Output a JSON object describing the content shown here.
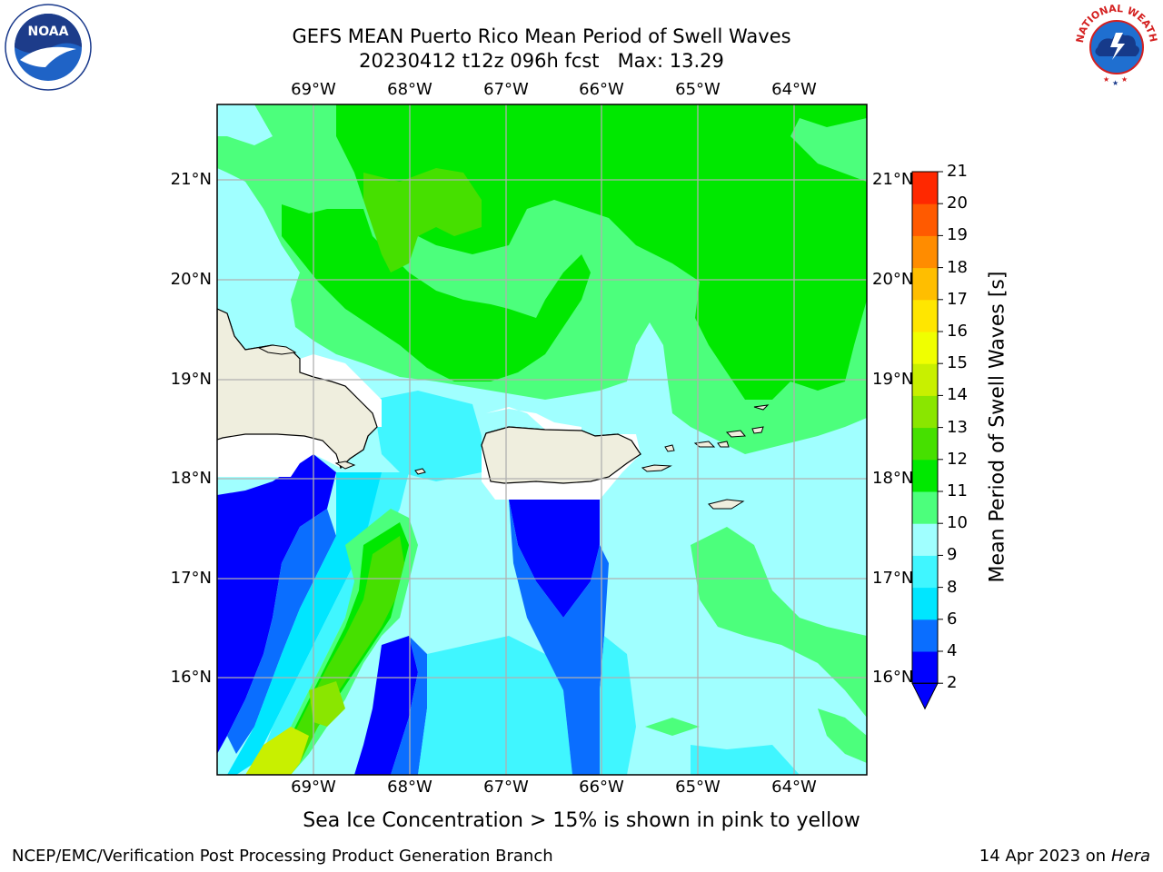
{
  "title": {
    "line1": "GEFS MEAN Puerto Rico Mean Period of Swell Waves",
    "line2": "20230412 t12z 096h fcst   Max: 13.29"
  },
  "colorbar": {
    "label": "Mean Period of Swell Waves [s]",
    "ticks": [
      "2",
      "4",
      "6",
      "8",
      "9",
      "10",
      "11",
      "12",
      "13",
      "14",
      "15",
      "16",
      "17",
      "18",
      "19",
      "20",
      "21"
    ],
    "colors": [
      "#0000ff",
      "#0a6eff",
      "#00e6ff",
      "#40f6ff",
      "#a0ffff",
      "#4cff7c",
      "#00e800",
      "#46e000",
      "#8ae600",
      "#c8f000",
      "#f0ff00",
      "#ffe600",
      "#ffbe00",
      "#ff8c00",
      "#ff5a00",
      "#ff2800"
    ],
    "under_color": "#0000ff"
  },
  "axes": {
    "lon_labels": [
      "69°W",
      "68°W",
      "67°W",
      "66°W",
      "65°W",
      "64°W"
    ],
    "lat_labels": [
      "21°N",
      "20°N",
      "19°N",
      "18°N",
      "17°N",
      "16°N"
    ]
  },
  "chart_data": {
    "type": "heatmap",
    "title": "GEFS MEAN Puerto Rico Mean Period of Swell Waves",
    "subtitle": "20230412 t12z 096h fcst   Max: 13.29",
    "variable": "Mean Period of Swell Waves [s]",
    "max": 13.29,
    "lon_range": [
      -69.9,
      -63.2
    ],
    "lat_range": [
      15.0,
      21.75
    ],
    "grid": true,
    "legend": "right colorbar",
    "levels": [
      2,
      4,
      6,
      8,
      9,
      10,
      11,
      12,
      13,
      14,
      15,
      16,
      17,
      18,
      19,
      20,
      21
    ]
  },
  "notes": {
    "sea_ice": "Sea Ice Concentration > 15% is shown in pink to yellow"
  },
  "footer": {
    "branch": "NCEP/EMC/Verification Post Processing Product Generation Branch",
    "date_prefix": "14 Apr 2023 on ",
    "machine": "Hera"
  },
  "logos": {
    "left": {
      "text": "NOAA",
      "icon": "noaa-logo-icon"
    },
    "right": {
      "text": "NATIONAL WEATHER SERVICE",
      "icon": "nws-logo-icon"
    }
  }
}
